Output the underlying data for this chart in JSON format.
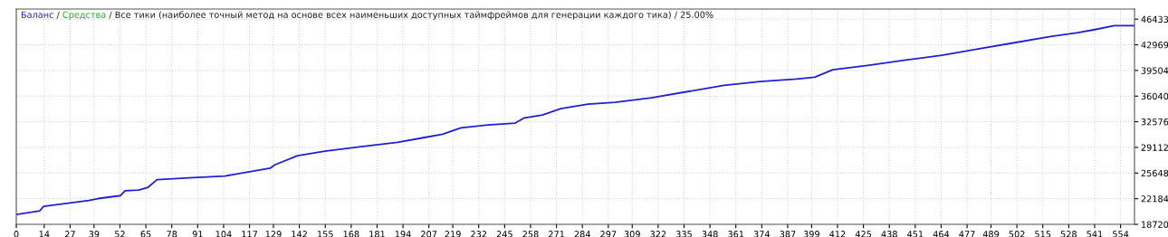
{
  "chart_data": {
    "type": "line",
    "annotations": [
      "/"
    ],
    "subtitle": "/ Все тики (наиболее точный метод на основе всех наименьших доступных таймфреймов для генерации каждого тика) / 25.00%",
    "x": [
      0,
      11.8,
      13.7,
      36.4,
      41,
      52.3,
      54.6,
      61.4,
      64.6,
      66,
      70.6,
      86.5,
      104.7,
      127.4,
      129.7,
      141.1,
      154.8,
      173,
      191.2,
      204.8,
      213.9,
      223,
      236.7,
      250.3,
      254.9,
      264,
      273.1,
      286.8,
      300.4,
      318.6,
      336.8,
      355,
      373.2,
      391.4,
      400.5,
      409.6,
      427.9,
      446.1,
      464.3,
      482.5,
      500.7,
      518.9,
      532.5,
      541.6,
      550.8,
      561
    ],
    "series": [
      {
        "name": "Баланс",
        "color": "#2020d0",
        "values": [
          20050,
          20550,
          21150,
          21950,
          22200,
          22600,
          23250,
          23350,
          23600,
          23700,
          24750,
          25000,
          25250,
          26300,
          26750,
          28000,
          28600,
          29200,
          29800,
          30450,
          30900,
          31750,
          32150,
          32400,
          33100,
          33500,
          34350,
          34950,
          35200,
          35800,
          36650,
          37500,
          38000,
          38350,
          38600,
          39600,
          40200,
          40900,
          41550,
          42400,
          43250,
          44100,
          44600,
          45050,
          45550,
          45550
        ]
      },
      {
        "name": "Средства",
        "color": "#20b020",
        "values": [
          null,
          null,
          null,
          null,
          null,
          null,
          null,
          null,
          null,
          null,
          null,
          null,
          null,
          null,
          null,
          null,
          null,
          null,
          null,
          null,
          null,
          null,
          null,
          null,
          null,
          null,
          null,
          null,
          null,
          null,
          null,
          null,
          null,
          null,
          null,
          null,
          null,
          null,
          null,
          null,
          null,
          null,
          null,
          null,
          null,
          null
        ]
      }
    ],
    "xlim": [
      0,
      561
    ],
    "xticks": [
      0,
      14,
      27,
      39,
      52,
      65,
      78,
      91,
      104,
      117,
      129,
      142,
      155,
      168,
      181,
      194,
      207,
      219,
      232,
      245,
      258,
      271,
      284,
      297,
      309,
      322,
      335,
      348,
      361,
      374,
      387,
      399,
      412,
      425,
      438,
      451,
      464,
      477,
      489,
      502,
      515,
      528,
      541,
      554
    ],
    "ylim": [
      18720,
      47800
    ],
    "yticks": [
      18720,
      22184,
      25648,
      29112,
      32576,
      36040,
      39504,
      42969,
      46433
    ],
    "grid": true,
    "legend": "top left",
    "line_style": "solid",
    "marker": "none"
  }
}
